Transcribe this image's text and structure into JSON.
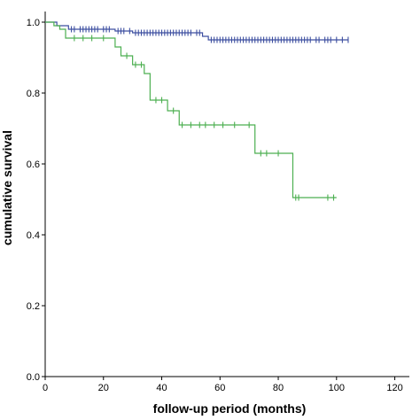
{
  "chart_data": {
    "type": "line",
    "title": "",
    "xlabel": "follow-up period (months)",
    "ylabel": "cumulative survival",
    "xlim": [
      0,
      125
    ],
    "ylim": [
      0,
      1.03
    ],
    "x_ticks": [
      "0",
      "20",
      "40",
      "60",
      "80",
      "100",
      "120"
    ],
    "y_ticks": [
      "0.0",
      "0.2",
      "0.4",
      "0.6",
      "0.8",
      "1.0"
    ],
    "grid": false,
    "legend": "none",
    "series": [
      {
        "color": "#3d4fa0",
        "steps": [
          [
            0,
            1.0
          ],
          [
            4,
            0.99
          ],
          [
            8,
            0.98
          ],
          [
            24,
            0.975
          ],
          [
            30,
            0.97
          ],
          [
            54,
            0.96
          ],
          [
            56,
            0.95
          ],
          [
            104,
            0.95
          ]
        ],
        "censored": [
          [
            9,
            0.98
          ],
          [
            10,
            0.98
          ],
          [
            12,
            0.98
          ],
          [
            13,
            0.98
          ],
          [
            14,
            0.98
          ],
          [
            15,
            0.98
          ],
          [
            16,
            0.98
          ],
          [
            17,
            0.98
          ],
          [
            18,
            0.98
          ],
          [
            20,
            0.98
          ],
          [
            21,
            0.98
          ],
          [
            22,
            0.98
          ],
          [
            25,
            0.975
          ],
          [
            26,
            0.975
          ],
          [
            27,
            0.975
          ],
          [
            29,
            0.975
          ],
          [
            31,
            0.97
          ],
          [
            32,
            0.97
          ],
          [
            33,
            0.97
          ],
          [
            34,
            0.97
          ],
          [
            35,
            0.97
          ],
          [
            36,
            0.97
          ],
          [
            37,
            0.97
          ],
          [
            38,
            0.97
          ],
          [
            39,
            0.97
          ],
          [
            40,
            0.97
          ],
          [
            41,
            0.97
          ],
          [
            42,
            0.97
          ],
          [
            43,
            0.97
          ],
          [
            44,
            0.97
          ],
          [
            45,
            0.97
          ],
          [
            46,
            0.97
          ],
          [
            47,
            0.97
          ],
          [
            48,
            0.97
          ],
          [
            49,
            0.97
          ],
          [
            50,
            0.97
          ],
          [
            52,
            0.97
          ],
          [
            53,
            0.97
          ],
          [
            57,
            0.95
          ],
          [
            58,
            0.95
          ],
          [
            59,
            0.95
          ],
          [
            60,
            0.95
          ],
          [
            61,
            0.95
          ],
          [
            62,
            0.95
          ],
          [
            63,
            0.95
          ],
          [
            64,
            0.95
          ],
          [
            65,
            0.95
          ],
          [
            66,
            0.95
          ],
          [
            67,
            0.95
          ],
          [
            68,
            0.95
          ],
          [
            69,
            0.95
          ],
          [
            70,
            0.95
          ],
          [
            71,
            0.95
          ],
          [
            72,
            0.95
          ],
          [
            73,
            0.95
          ],
          [
            74,
            0.95
          ],
          [
            75,
            0.95
          ],
          [
            76,
            0.95
          ],
          [
            77,
            0.95
          ],
          [
            78,
            0.95
          ],
          [
            79,
            0.95
          ],
          [
            80,
            0.95
          ],
          [
            81,
            0.95
          ],
          [
            82,
            0.95
          ],
          [
            83,
            0.95
          ],
          [
            84,
            0.95
          ],
          [
            85,
            0.95
          ],
          [
            86,
            0.95
          ],
          [
            87,
            0.95
          ],
          [
            88,
            0.95
          ],
          [
            89,
            0.95
          ],
          [
            90,
            0.95
          ],
          [
            91,
            0.95
          ],
          [
            93,
            0.95
          ],
          [
            94,
            0.95
          ],
          [
            96,
            0.95
          ],
          [
            97,
            0.95
          ],
          [
            98,
            0.95
          ],
          [
            100,
            0.95
          ],
          [
            102,
            0.95
          ],
          [
            104,
            0.95
          ]
        ]
      },
      {
        "color": "#4caf50",
        "steps": [
          [
            0,
            1.0
          ],
          [
            3,
            0.99
          ],
          [
            5,
            0.98
          ],
          [
            7,
            0.955
          ],
          [
            24,
            0.93
          ],
          [
            26,
            0.905
          ],
          [
            30,
            0.88
          ],
          [
            34,
            0.855
          ],
          [
            36,
            0.78
          ],
          [
            42,
            0.75
          ],
          [
            46,
            0.71
          ],
          [
            72,
            0.63
          ],
          [
            85,
            0.505
          ],
          [
            100,
            0.505
          ]
        ],
        "censored": [
          [
            10,
            0.955
          ],
          [
            13,
            0.955
          ],
          [
            16,
            0.955
          ],
          [
            20,
            0.955
          ],
          [
            28,
            0.905
          ],
          [
            31,
            0.88
          ],
          [
            33,
            0.88
          ],
          [
            38,
            0.78
          ],
          [
            40,
            0.78
          ],
          [
            44,
            0.75
          ],
          [
            47,
            0.71
          ],
          [
            50,
            0.71
          ],
          [
            53,
            0.71
          ],
          [
            55,
            0.71
          ],
          [
            58,
            0.71
          ],
          [
            61,
            0.71
          ],
          [
            65,
            0.71
          ],
          [
            70,
            0.71
          ],
          [
            74,
            0.63
          ],
          [
            76,
            0.63
          ],
          [
            80,
            0.63
          ],
          [
            86,
            0.505
          ],
          [
            87,
            0.505
          ],
          [
            97,
            0.505
          ],
          [
            99,
            0.505
          ]
        ]
      }
    ]
  }
}
